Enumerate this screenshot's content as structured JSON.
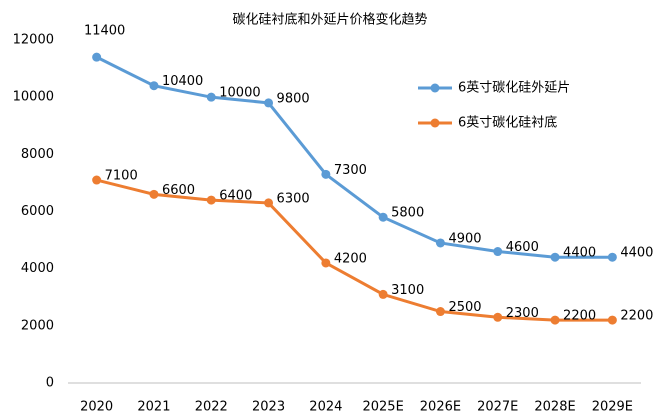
{
  "chart_data": {
    "type": "line",
    "title": "碳化硅衬底和外延片价格变化趋势",
    "categories": [
      "2020",
      "2021",
      "2022",
      "2023",
      "2024",
      "2025E",
      "2026E",
      "2027E",
      "2028E",
      "2029E"
    ],
    "series": [
      {
        "name": "6英寸碳化硅外延片",
        "color": "#5b9bd5",
        "values": [
          11400,
          10400,
          10000,
          9800,
          7300,
          5800,
          4900,
          4600,
          4400,
          4400
        ]
      },
      {
        "name": "6英寸碳化硅衬底",
        "color": "#ed7d31",
        "values": [
          7100,
          6600,
          6400,
          6300,
          4200,
          3100,
          2500,
          2300,
          2200,
          2200
        ]
      }
    ],
    "ylim": [
      0,
      12000
    ],
    "yticks": [
      0,
      2000,
      4000,
      6000,
      8000,
      10000,
      12000
    ],
    "grid": false,
    "data_labels": true
  }
}
